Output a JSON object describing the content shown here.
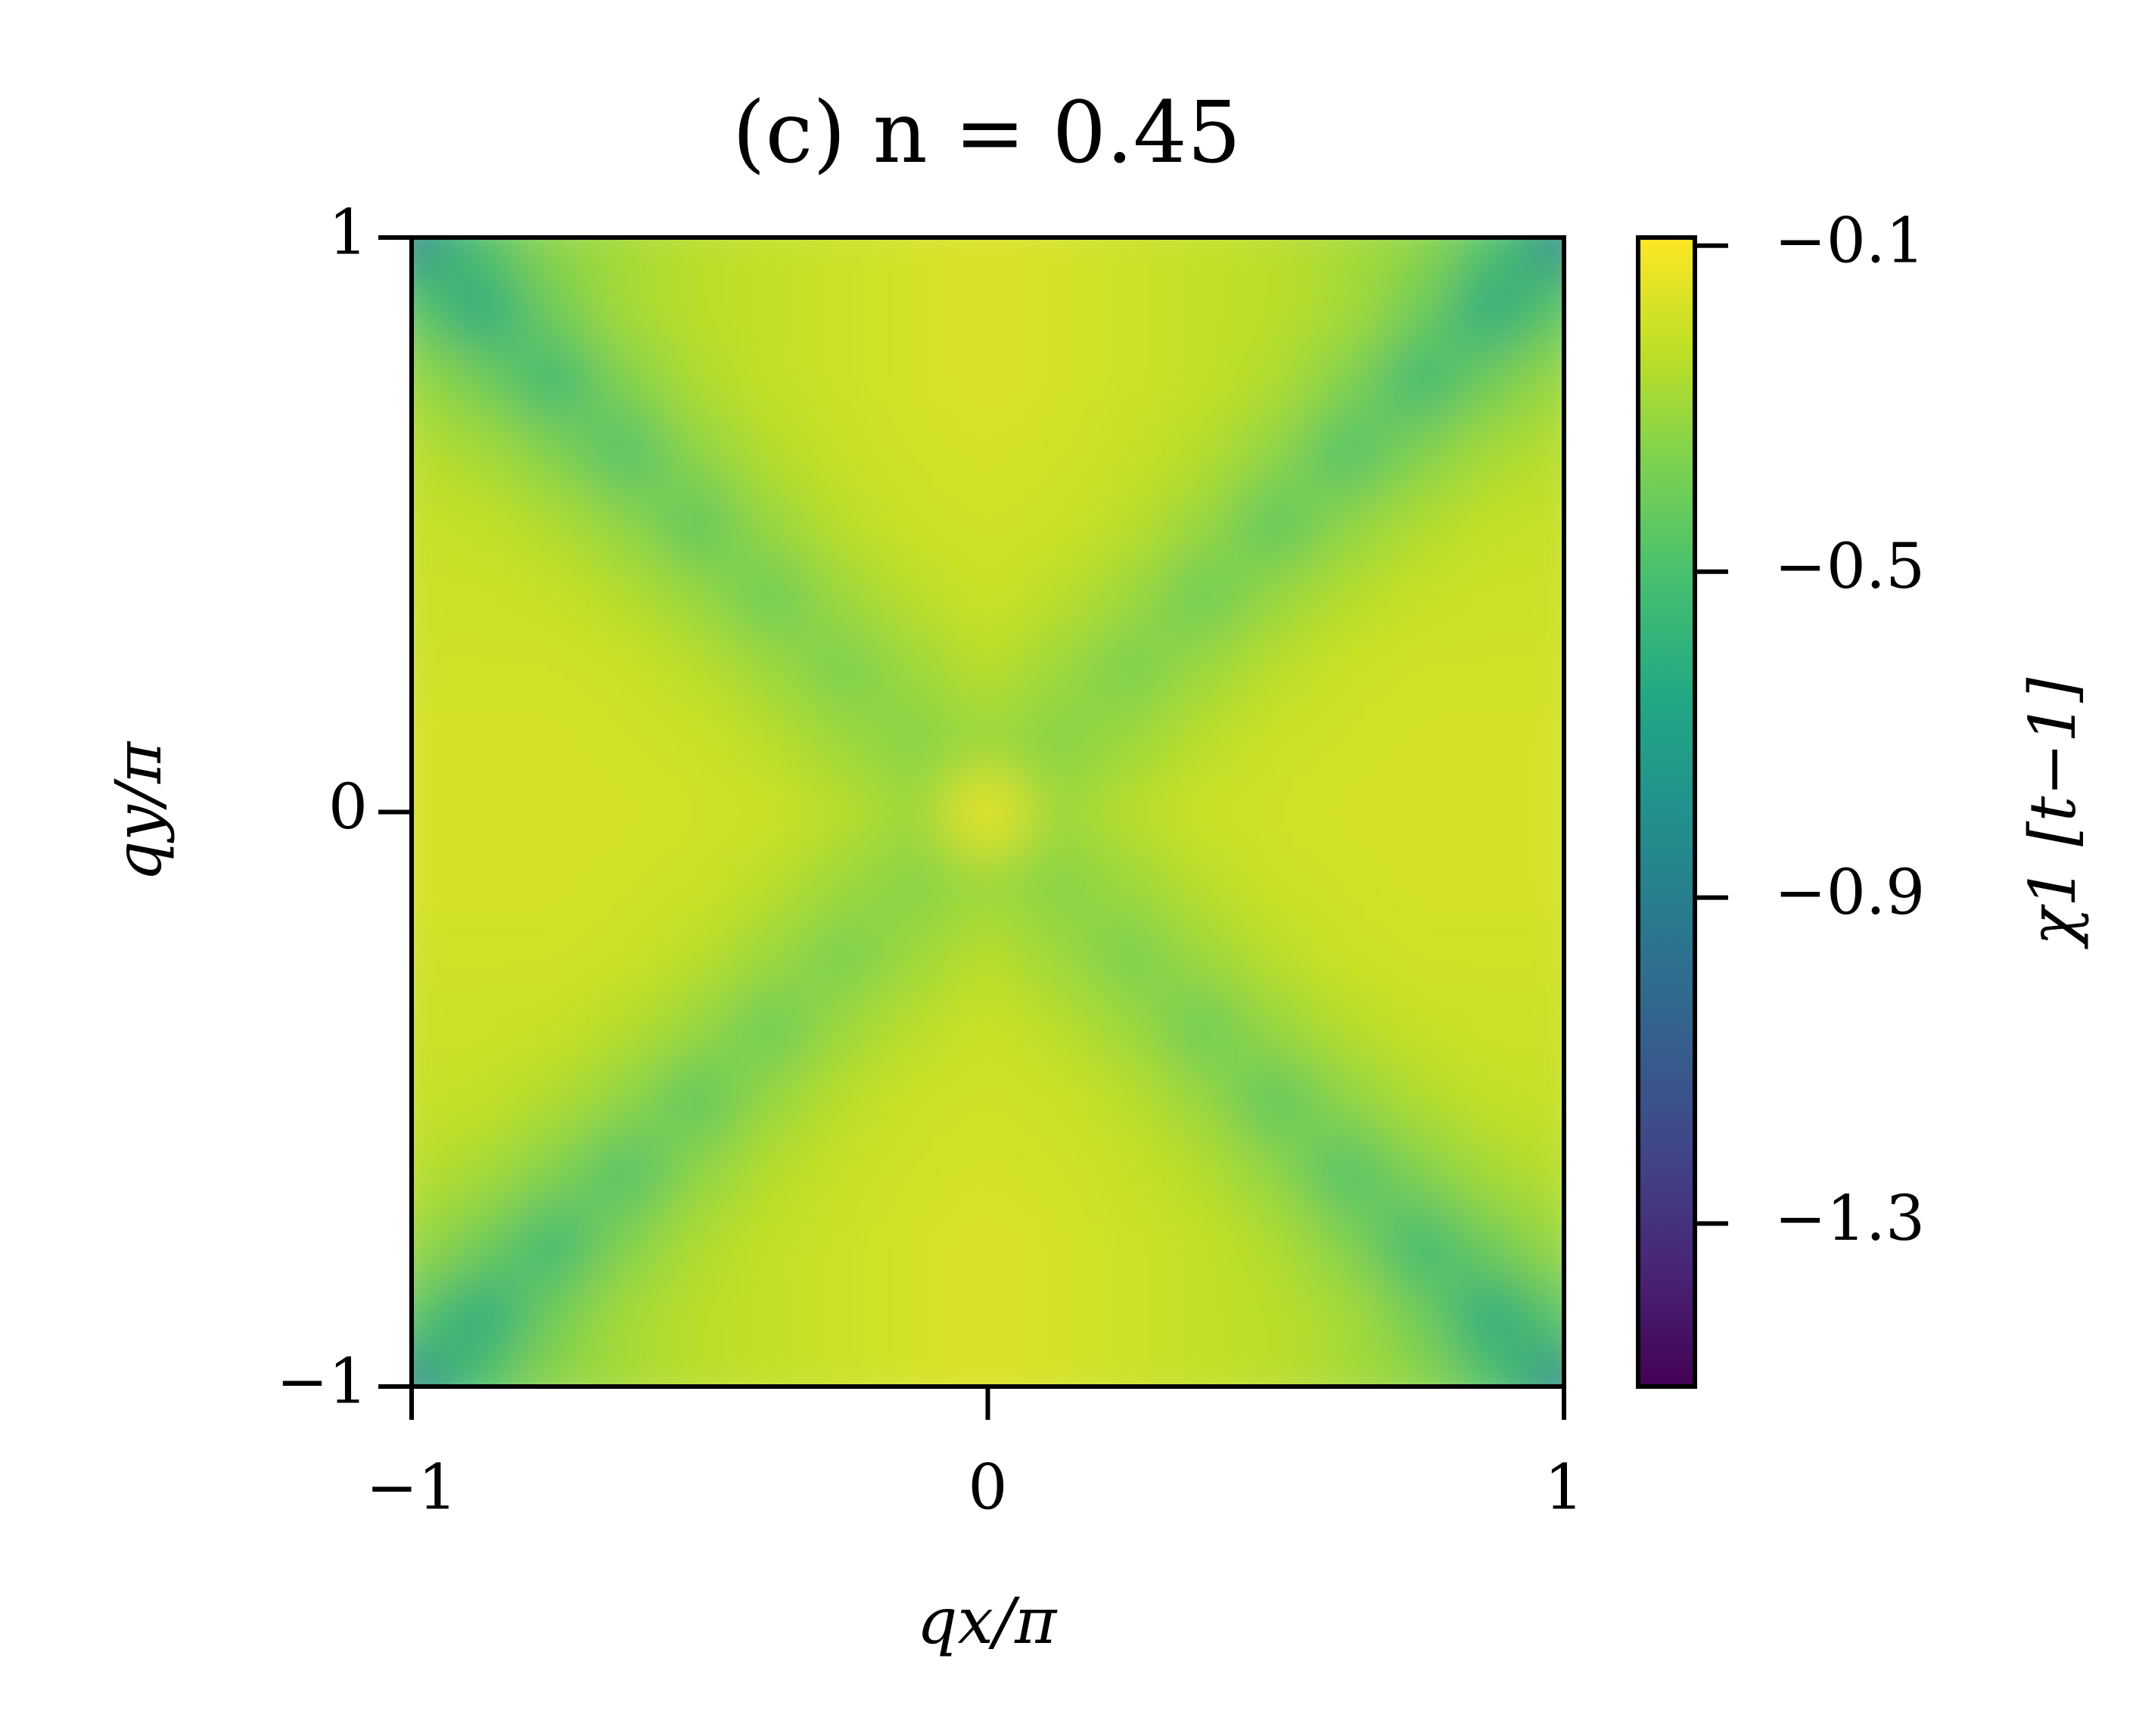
{
  "chart_data": {
    "type": "contour",
    "title": "(c) n = 0.45",
    "xlabel": "qx/π",
    "ylabel": "qy/π",
    "colorbar_label": "χ1 [t−1]",
    "colormap": "viridis",
    "x": [
      -1,
      -0.875,
      -0.75,
      -0.625,
      -0.5,
      -0.375,
      -0.25,
      -0.125,
      0,
      0.125,
      0.25,
      0.375,
      0.5,
      0.625,
      0.75,
      0.875,
      1
    ],
    "y": [
      -1,
      -0.875,
      -0.75,
      -0.625,
      -0.5,
      -0.375,
      -0.25,
      -0.125,
      0,
      0.125,
      0.25,
      0.375,
      0.5,
      0.625,
      0.75,
      0.875,
      1
    ],
    "z": [
      [
        -0.85,
        -0.48,
        -0.33,
        -0.28,
        -0.24,
        -0.22,
        -0.2,
        -0.18,
        -0.17,
        -0.18,
        -0.2,
        -0.22,
        -0.24,
        -0.28,
        -0.33,
        -0.48,
        -0.85
      ],
      [
        -0.45,
        -0.65,
        -0.4,
        -0.28,
        -0.24,
        -0.22,
        -0.2,
        -0.18,
        -0.17,
        -0.18,
        -0.2,
        -0.22,
        -0.24,
        -0.28,
        -0.4,
        -0.65,
        -0.45
      ],
      [
        -0.3,
        -0.4,
        -0.56,
        -0.36,
        -0.26,
        -0.22,
        -0.2,
        -0.18,
        -0.17,
        -0.18,
        -0.2,
        -0.22,
        -0.26,
        -0.36,
        -0.56,
        -0.4,
        -0.3
      ],
      [
        -0.24,
        -0.28,
        -0.36,
        -0.5,
        -0.33,
        -0.25,
        -0.21,
        -0.19,
        -0.18,
        -0.19,
        -0.21,
        -0.25,
        -0.33,
        -0.5,
        -0.36,
        -0.28,
        -0.24
      ],
      [
        -0.21,
        -0.22,
        -0.26,
        -0.33,
        -0.46,
        -0.31,
        -0.24,
        -0.2,
        -0.19,
        -0.2,
        -0.24,
        -0.31,
        -0.46,
        -0.33,
        -0.26,
        -0.22,
        -0.21
      ],
      [
        -0.2,
        -0.2,
        -0.21,
        -0.25,
        -0.31,
        -0.42,
        -0.3,
        -0.24,
        -0.2,
        -0.24,
        -0.3,
        -0.42,
        -0.31,
        -0.25,
        -0.21,
        -0.2,
        -0.2
      ],
      [
        -0.19,
        -0.19,
        -0.19,
        -0.2,
        -0.24,
        -0.3,
        -0.38,
        -0.3,
        -0.24,
        -0.3,
        -0.38,
        -0.3,
        -0.24,
        -0.2,
        -0.19,
        -0.19,
        -0.19
      ],
      [
        -0.18,
        -0.18,
        -0.18,
        -0.19,
        -0.2,
        -0.24,
        -0.3,
        -0.35,
        -0.3,
        -0.35,
        -0.3,
        -0.24,
        -0.2,
        -0.19,
        -0.18,
        -0.18,
        -0.18
      ],
      [
        -0.18,
        -0.18,
        -0.18,
        -0.18,
        -0.19,
        -0.2,
        -0.24,
        -0.3,
        -0.12,
        -0.3,
        -0.24,
        -0.2,
        -0.19,
        -0.18,
        -0.18,
        -0.18,
        -0.18
      ],
      [
        -0.18,
        -0.18,
        -0.18,
        -0.19,
        -0.2,
        -0.24,
        -0.3,
        -0.35,
        -0.3,
        -0.35,
        -0.3,
        -0.24,
        -0.2,
        -0.19,
        -0.18,
        -0.18,
        -0.18
      ],
      [
        -0.19,
        -0.19,
        -0.19,
        -0.2,
        -0.24,
        -0.3,
        -0.38,
        -0.3,
        -0.24,
        -0.3,
        -0.38,
        -0.3,
        -0.24,
        -0.2,
        -0.19,
        -0.19,
        -0.19
      ],
      [
        -0.2,
        -0.2,
        -0.21,
        -0.25,
        -0.31,
        -0.42,
        -0.3,
        -0.24,
        -0.2,
        -0.24,
        -0.3,
        -0.42,
        -0.31,
        -0.25,
        -0.21,
        -0.2,
        -0.2
      ],
      [
        -0.21,
        -0.22,
        -0.26,
        -0.33,
        -0.46,
        -0.31,
        -0.24,
        -0.2,
        -0.19,
        -0.2,
        -0.24,
        -0.31,
        -0.46,
        -0.33,
        -0.26,
        -0.22,
        -0.21
      ],
      [
        -0.24,
        -0.28,
        -0.36,
        -0.5,
        -0.33,
        -0.25,
        -0.21,
        -0.19,
        -0.18,
        -0.19,
        -0.21,
        -0.25,
        -0.33,
        -0.5,
        -0.36,
        -0.28,
        -0.24
      ],
      [
        -0.3,
        -0.4,
        -0.56,
        -0.36,
        -0.26,
        -0.22,
        -0.2,
        -0.18,
        -0.17,
        -0.18,
        -0.2,
        -0.22,
        -0.26,
        -0.36,
        -0.56,
        -0.4,
        -0.3
      ],
      [
        -0.45,
        -0.65,
        -0.4,
        -0.28,
        -0.24,
        -0.22,
        -0.2,
        -0.18,
        -0.17,
        -0.18,
        -0.2,
        -0.22,
        -0.24,
        -0.28,
        -0.4,
        -0.65,
        -0.45
      ],
      [
        -0.85,
        -0.48,
        -0.33,
        -0.28,
        -0.24,
        -0.22,
        -0.2,
        -0.18,
        -0.17,
        -0.18,
        -0.2,
        -0.22,
        -0.24,
        -0.28,
        -0.33,
        -0.48,
        -0.85
      ]
    ],
    "xlim": [
      -1,
      1
    ],
    "ylim": [
      -1,
      1
    ],
    "xticks": [
      {
        "value": -1,
        "label": "−1"
      },
      0,
      1
    ],
    "yticks": [
      {
        "value": -1,
        "label": "−1"
      },
      0,
      1
    ],
    "zlim": [
      -1.5,
      -0.09
    ],
    "zticks": [
      {
        "value": -0.1,
        "label": "−0.1"
      },
      {
        "value": -0.5,
        "label": "−0.5"
      },
      {
        "value": -0.9,
        "label": "−0.9"
      },
      {
        "value": -1.3,
        "label": "−1.3"
      }
    ]
  }
}
